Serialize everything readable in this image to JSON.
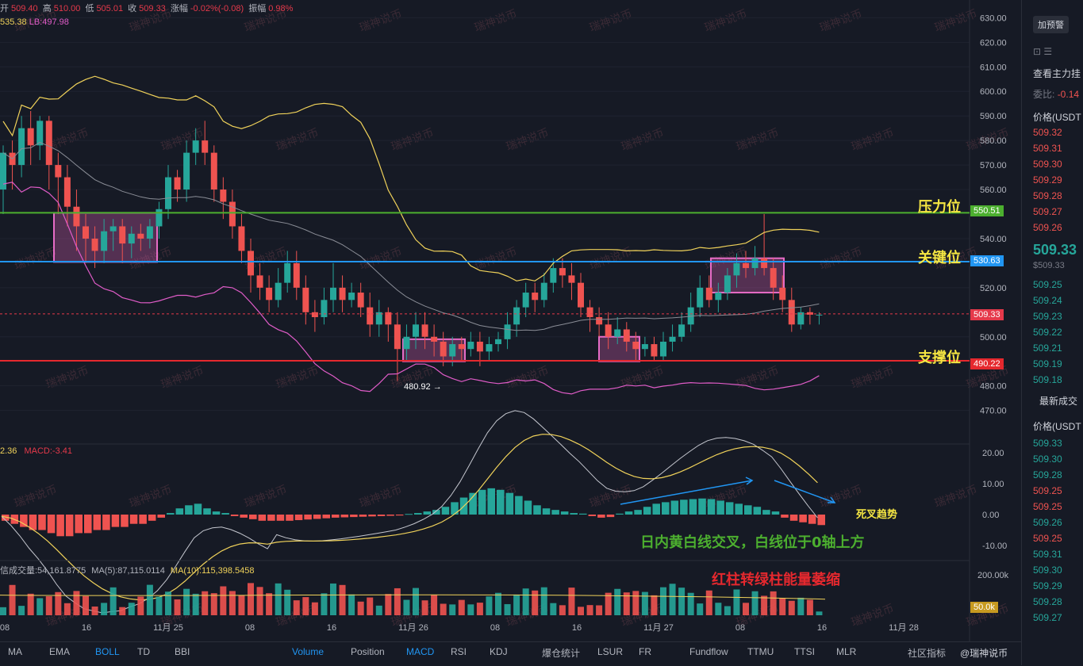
{
  "header": {
    "open_label": "开",
    "open": "509.40",
    "high_label": "高",
    "high": "510.00",
    "low_label": "低",
    "low": "505.01",
    "close_label": "收",
    "close": "509.33",
    "change_label": "涨幅",
    "change": "-0.02%(-0.08)",
    "amplitude_label": "振幅",
    "amplitude": "0.98%",
    "boll_ub": "535.38",
    "boll_lb": "LB:497.98"
  },
  "macd_legend": {
    "dif": "2.36",
    "macd": "MACD:-3.41"
  },
  "volume_legend": {
    "label": "信成交量:54,161.8775",
    "ma5": "MA(5):87,115.0114",
    "ma10": "MA(10):115,398.5458"
  },
  "levels": {
    "pressure": {
      "label": "压力位",
      "value": "550.51",
      "color": "#4caf2f"
    },
    "key": {
      "label": "关键位",
      "value": "530.63",
      "color": "#2196f3"
    },
    "support": {
      "label": "支撑位",
      "value": "490.22",
      "color": "#e5282e"
    },
    "current": {
      "value": "509.33",
      "color": "#e5394a"
    }
  },
  "annotations": {
    "low_point": "480.92 →",
    "death_cross": "死叉趋势",
    "intraday_cross": "日内黄白线交叉，白线位于0轴上方",
    "red_to_green": "红柱转绿柱能量萎缩"
  },
  "watermark": "瑞神说币",
  "price_axis": [
    "630.00",
    "620.00",
    "610.00",
    "600.00",
    "590.00",
    "580.00",
    "570.00",
    "560.00",
    "540.00",
    "520.00",
    "500.00",
    "480.00",
    "470.00"
  ],
  "macd_axis": [
    "20.00",
    "10.00",
    "0.00",
    "-10.00"
  ],
  "volume_axis": {
    "tick": "200.00k",
    "current": "50.0k"
  },
  "time_axis": [
    "08",
    "16",
    "11月 25",
    "08",
    "16",
    "11月 26",
    "08",
    "16",
    "11月 27",
    "08",
    "16",
    "11月 28"
  ],
  "indicator_tabs": [
    "MA",
    "EMA",
    "BOLL",
    "TD",
    "BBI",
    "Volume",
    "Position",
    "MACD",
    "RSI",
    "KDJ",
    "爆仓统计",
    "LSUR",
    "FR",
    "Fundflow",
    "TTMU",
    "TTSI",
    "MLR",
    "社区指标"
  ],
  "active_tabs": [
    "BOLL",
    "Volume",
    "MACD"
  ],
  "sidebar": {
    "alert_button": "加预警",
    "main_order_label": "查看主力挂",
    "ratio_label": "委比:",
    "ratio_value": "-0.14",
    "price_header": "价格(USDT",
    "asks": [
      "509.32",
      "509.31",
      "509.30",
      "509.29",
      "509.28",
      "509.27",
      "509.26"
    ],
    "last_price": "509.33",
    "last_price_usd": "$509.33",
    "bids": [
      "509.25",
      "509.24",
      "509.23",
      "509.22",
      "509.21",
      "509.19",
      "509.18"
    ],
    "latest_trades_label": "最新成交",
    "trades_price_header": "价格(USDT",
    "trades": [
      {
        "price": "509.33",
        "color": "#26a69a"
      },
      {
        "price": "509.30",
        "color": "#26a69a"
      },
      {
        "price": "509.28",
        "color": "#26a69a"
      },
      {
        "price": "509.25",
        "color": "#ef5350"
      },
      {
        "price": "509.25",
        "color": "#ef5350"
      },
      {
        "price": "509.26",
        "color": "#26a69a"
      },
      {
        "price": "509.25",
        "color": "#ef5350"
      },
      {
        "price": "509.31",
        "color": "#26a69a"
      },
      {
        "price": "509.30",
        "color": "#26a69a"
      },
      {
        "price": "509.29",
        "color": "#26a69a"
      },
      {
        "price": "509.28",
        "color": "#26a69a"
      },
      {
        "price": "509.27",
        "color": "#26a69a"
      }
    ]
  },
  "brand": "@瑞神说币",
  "chart_data": {
    "type": "candlestick",
    "price_range": [
      466,
      634
    ],
    "candles": [
      [
        560,
        575,
        550,
        578
      ],
      [
        575,
        570,
        560,
        580
      ],
      [
        570,
        585,
        565,
        590
      ],
      [
        585,
        578,
        570,
        592
      ],
      [
        578,
        588,
        572,
        590
      ],
      [
        588,
        570,
        560,
        590
      ],
      [
        570,
        565,
        550,
        575
      ],
      [
        565,
        553,
        545,
        570
      ],
      [
        553,
        545,
        535,
        560
      ],
      [
        545,
        540,
        530,
        550
      ],
      [
        540,
        535,
        528,
        545
      ],
      [
        535,
        543,
        530,
        548
      ],
      [
        543,
        545,
        535,
        548
      ],
      [
        545,
        538,
        530,
        548
      ],
      [
        538,
        542,
        532,
        545
      ],
      [
        542,
        540,
        535,
        546
      ],
      [
        540,
        545,
        536,
        548
      ],
      [
        545,
        552,
        540,
        555
      ],
      [
        552,
        565,
        548,
        570
      ],
      [
        565,
        560,
        555,
        568
      ],
      [
        560,
        575,
        555,
        580
      ],
      [
        575,
        580,
        570,
        585
      ],
      [
        580,
        575,
        570,
        588
      ],
      [
        575,
        560,
        555,
        578
      ],
      [
        560,
        555,
        548,
        565
      ],
      [
        555,
        545,
        540,
        560
      ],
      [
        545,
        535,
        530,
        550
      ],
      [
        535,
        525,
        518,
        540
      ],
      [
        525,
        520,
        515,
        530
      ],
      [
        520,
        515,
        510,
        525
      ],
      [
        515,
        522,
        512,
        528
      ],
      [
        522,
        530,
        518,
        535
      ],
      [
        530,
        520,
        515,
        535
      ],
      [
        520,
        510,
        505,
        525
      ],
      [
        510,
        508,
        502,
        515
      ],
      [
        508,
        515,
        505,
        520
      ],
      [
        515,
        520,
        510,
        530
      ],
      [
        520,
        515,
        510,
        525
      ],
      [
        515,
        518,
        512,
        522
      ],
      [
        518,
        512,
        508,
        522
      ],
      [
        512,
        505,
        500,
        518
      ],
      [
        505,
        510,
        500,
        515
      ],
      [
        510,
        505,
        498,
        512
      ],
      [
        505,
        495,
        482,
        510
      ],
      [
        495,
        500,
        490,
        505
      ],
      [
        500,
        505,
        495,
        510
      ],
      [
        505,
        500,
        495,
        510
      ],
      [
        500,
        498,
        492,
        505
      ],
      [
        498,
        492,
        488,
        502
      ],
      [
        492,
        497,
        488,
        500
      ],
      [
        497,
        495,
        490,
        500
      ],
      [
        495,
        498,
        492,
        502
      ],
      [
        498,
        494,
        488,
        502
      ],
      [
        494,
        497,
        490,
        500
      ],
      [
        497,
        499,
        494,
        502
      ],
      [
        499,
        505,
        495,
        510
      ],
      [
        505,
        512,
        500,
        515
      ],
      [
        512,
        518,
        508,
        522
      ],
      [
        518,
        515,
        510,
        522
      ],
      [
        515,
        522,
        512,
        526
      ],
      [
        522,
        528,
        518,
        532
      ],
      [
        528,
        525,
        520,
        532
      ],
      [
        525,
        522,
        515,
        530
      ],
      [
        522,
        512,
        508,
        526
      ],
      [
        512,
        508,
        502,
        515
      ],
      [
        508,
        505,
        500,
        512
      ],
      [
        505,
        500,
        495,
        510
      ],
      [
        500,
        503,
        497,
        508
      ],
      [
        503,
        498,
        494,
        506
      ],
      [
        498,
        495,
        490,
        502
      ],
      [
        495,
        497,
        492,
        500
      ],
      [
        497,
        492,
        490,
        500
      ],
      [
        492,
        498,
        490,
        502
      ],
      [
        498,
        500,
        494,
        505
      ],
      [
        500,
        505,
        498,
        510
      ],
      [
        505,
        512,
        502,
        518
      ],
      [
        512,
        520,
        508,
        525
      ],
      [
        520,
        515,
        512,
        525
      ],
      [
        515,
        518,
        510,
        522
      ],
      [
        518,
        525,
        515,
        528
      ],
      [
        525,
        530,
        520,
        534
      ],
      [
        530,
        528,
        524,
        535
      ],
      [
        528,
        532,
        525,
        537
      ],
      [
        532,
        528,
        525,
        550
      ],
      [
        528,
        520,
        515,
        532
      ],
      [
        520,
        515,
        510,
        525
      ],
      [
        515,
        505,
        502,
        520
      ],
      [
        505,
        510,
        503,
        512
      ],
      [
        510,
        509,
        505,
        512
      ],
      [
        509,
        509,
        505,
        510
      ]
    ],
    "macd_hist": [
      -2,
      -3,
      -4,
      -5,
      -5,
      -6,
      -7,
      -7,
      -6,
      -6,
      -5,
      -5,
      -4,
      -4,
      -3,
      -3,
      -2,
      -1,
      0.5,
      2,
      3,
      3.5,
      2,
      1,
      0.5,
      -0.5,
      -1,
      -1.5,
      -2,
      -2,
      -2,
      -2,
      -1.8,
      -1.6,
      -1.4,
      -1.2,
      -1,
      -0.9,
      -0.8,
      -0.7,
      -0.6,
      -0.5,
      -0.4,
      -0.3,
      0.2,
      0.5,
      1,
      1.5,
      2.5,
      4,
      5.5,
      7,
      8,
      8.5,
      8,
      7,
      6,
      4.5,
      3,
      2,
      1.5,
      1,
      0.5,
      0.3,
      -0.5,
      -1,
      -0.8,
      0.3,
      1,
      1.5,
      2.5,
      3.5,
      4,
      4.5,
      4.8,
      5,
      5.2,
      5,
      4.5,
      4,
      3.5,
      3,
      2.5,
      1.5,
      1,
      -1,
      -2,
      -2.5,
      -3,
      -3.4
    ],
    "volume_range": [
      0,
      260000
    ],
    "volume_current": 54161.8775
  }
}
